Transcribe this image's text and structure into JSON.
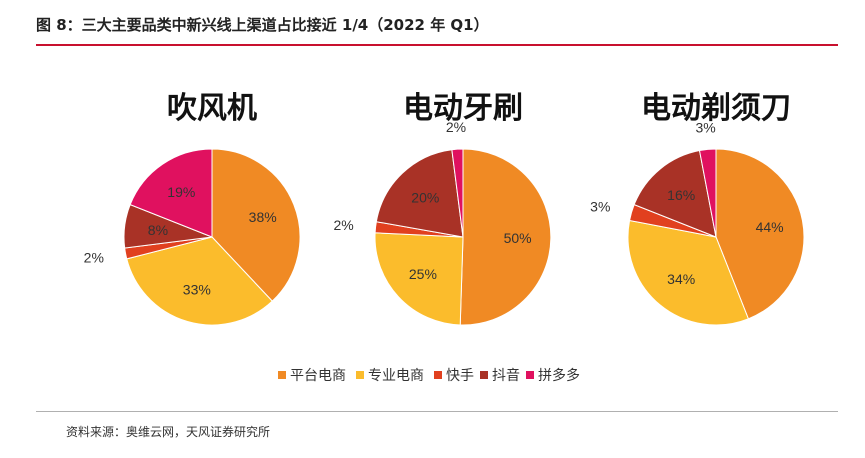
{
  "figure": {
    "title": "图 8：三大主要品类中新兴线上渠道占比接近 1/4（2022 年 Q1）",
    "source": "资料来源：奥维云网，天风证券研究所"
  },
  "colors": {
    "platform": "#F08A24",
    "specialty": "#FBBC2C",
    "kuaishou": "#E1401F",
    "douyin": "#A93226",
    "pinduoduo": "#E0115F"
  },
  "chart_data": [
    {
      "type": "pie",
      "title": "吹风机",
      "slices": [
        {
          "label": "平台电商",
          "value": 38,
          "display": "38%"
        },
        {
          "label": "专业电商",
          "value": 33,
          "display": "33%"
        },
        {
          "label": "快手",
          "value": 2,
          "display": "2%"
        },
        {
          "label": "抖音",
          "value": 8,
          "display": "8%"
        },
        {
          "label": "拼多多",
          "value": 19,
          "display": "19%"
        }
      ]
    },
    {
      "type": "pie",
      "title": "电动牙刷",
      "slices": [
        {
          "label": "平台电商",
          "value": 50,
          "display": "50%"
        },
        {
          "label": "专业电商",
          "value": 25,
          "display": "25%"
        },
        {
          "label": "快手",
          "value": 2,
          "display": "2%"
        },
        {
          "label": "抖音",
          "value": 20,
          "display": "20%"
        },
        {
          "label": "拼多多",
          "value": 2,
          "display": "2%"
        }
      ]
    },
    {
      "type": "pie",
      "title": "电动剃须刀",
      "slices": [
        {
          "label": "平台电商",
          "value": 44,
          "display": "44%"
        },
        {
          "label": "专业电商",
          "value": 34,
          "display": "34%"
        },
        {
          "label": "快手",
          "value": 3,
          "display": "3%"
        },
        {
          "label": "抖音",
          "value": 16,
          "display": "16%"
        },
        {
          "label": "拼多多",
          "value": 3,
          "display": "3%"
        }
      ]
    }
  ],
  "legend": {
    "placement": "bottom-center",
    "items": [
      "平台电商",
      "专业电商",
      "快手",
      "抖音",
      "拼多多"
    ]
  }
}
